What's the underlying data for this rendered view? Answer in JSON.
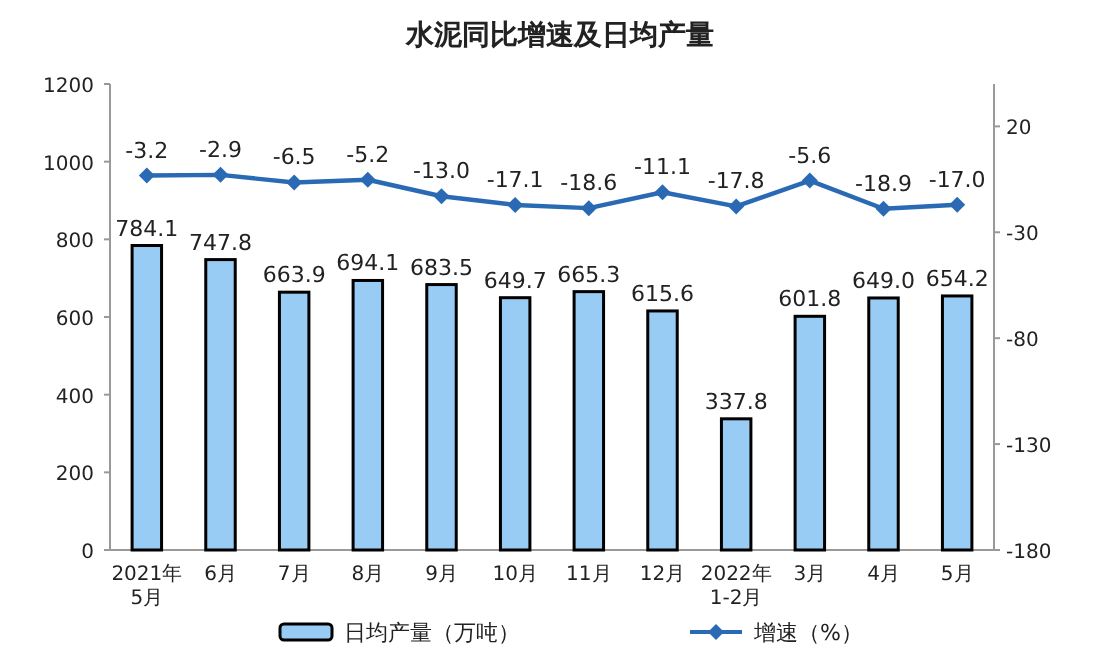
{
  "chart_data": {
    "type": "bar",
    "title": "水泥同比增速及日均产量",
    "categories": [
      "2021年\n5月",
      "6月",
      "7月",
      "8月",
      "9月",
      "10月",
      "11月",
      "12月",
      "2022年\n1-2月",
      "3月",
      "4月",
      "5月"
    ],
    "series": [
      {
        "name": "日均产量（万吨）",
        "color": "#99ccf5",
        "values": [
          784.1,
          747.8,
          663.9,
          694.1,
          683.5,
          649.7,
          665.3,
          615.6,
          337.8,
          601.8,
          649.0,
          654.2
        ],
        "value_labels": [
          "784.1",
          "747.8",
          "663.9",
          "694.1",
          "683.5",
          "649.7",
          "665.3",
          "615.6",
          "337.8",
          "601.8",
          "649.0",
          "654.2"
        ]
      },
      {
        "name": "增速（%）",
        "type": "line",
        "axis": "y2",
        "color": "#2a6ab5",
        "values": [
          -3.2,
          -2.9,
          -6.5,
          -5.2,
          -13.0,
          -17.1,
          -18.6,
          -11.1,
          -17.8,
          -5.6,
          -18.9,
          -17.0
        ],
        "value_labels": [
          "-3.2",
          "-2.9",
          "-6.5",
          "-5.2",
          "-13.0",
          "-17.1",
          "-18.6",
          "-11.1",
          "-17.8",
          "-5.6",
          "-18.9",
          "-17.0"
        ]
      }
    ],
    "ylim": [
      0,
      1200
    ],
    "yticks": [
      0,
      200,
      400,
      600,
      800,
      1000,
      1200
    ],
    "y2lim": [
      -180,
      40
    ],
    "y2ticks": [
      -180,
      -130,
      -80,
      -30,
      20
    ],
    "marker": "diamond",
    "legend": "bottom"
  }
}
